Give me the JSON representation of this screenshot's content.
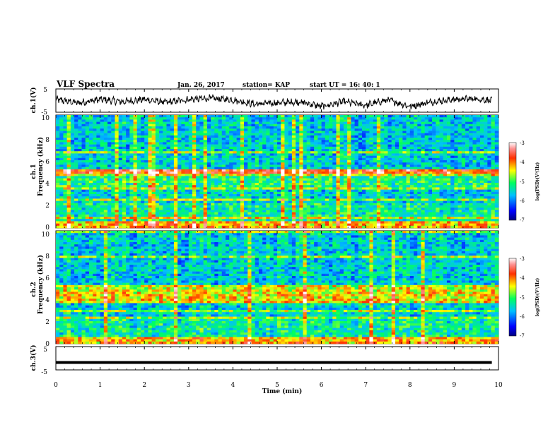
{
  "header": {
    "title": "VLF Spectra",
    "date": "Jan. 26, 2017",
    "station": "station= KAP",
    "start": "start  UT =   16: 40: 1"
  },
  "chart_data": [
    {
      "type": "line",
      "name": "ch1_waveform",
      "ylabel": "ch.1(V)",
      "ylim": [
        -5,
        5
      ],
      "xlim": [
        0,
        10
      ],
      "x": [
        0,
        0.5,
        1,
        1.5,
        2,
        2.5,
        3,
        3.5,
        4,
        4.5,
        5,
        5.5,
        6,
        6.5,
        7,
        7.5,
        8,
        8.5,
        9,
        9.5,
        9.85
      ],
      "y": [
        0.5,
        -1.0,
        0.5,
        -0.5,
        0.5,
        -0.8,
        0.5,
        1.0,
        0.3,
        -1.5,
        -1.0,
        -0.5,
        -2.5,
        -0.5,
        -2.0,
        0.3,
        -2.5,
        -0.5,
        0.5,
        0.8,
        0.0
      ],
      "yticks": [
        "5",
        "-5"
      ]
    },
    {
      "type": "heatmap",
      "name": "ch1_spectrogram",
      "ylabel_top": "ch.1",
      "ylabel": "Frequency (kHz)",
      "ylim": [
        0,
        10
      ],
      "xlim": [
        0,
        9.85
      ],
      "yticks": [
        "0",
        "2",
        "4",
        "6",
        "8",
        "10"
      ],
      "colorbar": {
        "label": "log(PSD)(V²/Hz)",
        "range": [
          -7,
          -3
        ],
        "ticks": [
          "-3",
          "-4",
          "-5",
          "-6",
          "-7"
        ]
      }
    },
    {
      "type": "heatmap",
      "name": "ch2_spectrogram",
      "ylabel_top": "ch.2",
      "ylabel": "Frequency (kHz)",
      "ylim": [
        0,
        10
      ],
      "xlim": [
        0,
        9.85
      ],
      "yticks": [
        "0",
        "2",
        "4",
        "6",
        "8",
        "10"
      ],
      "colorbar": {
        "label": "log(PSD)(V²/Hz)",
        "range": [
          -7,
          -3
        ],
        "ticks": [
          "-3",
          "-4",
          "-5",
          "-6",
          "-7"
        ]
      }
    },
    {
      "type": "line",
      "name": "ch3_waveform",
      "ylabel": "ch.3(V)",
      "ylim": [
        -5,
        5
      ],
      "xlim": [
        0,
        10
      ],
      "x": [
        0,
        9.85
      ],
      "y": [
        -1.8,
        -1.8
      ],
      "yticks": [
        "5",
        "-5"
      ]
    }
  ],
  "xaxis": {
    "label": "Time (min)",
    "ticks": [
      "0",
      "1",
      "2",
      "3",
      "4",
      "5",
      "6",
      "7",
      "8",
      "9",
      "10"
    ]
  }
}
